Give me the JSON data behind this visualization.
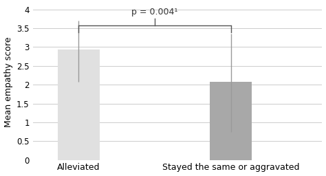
{
  "categories": [
    "Alleviated",
    "Stayed the same or aggravated"
  ],
  "values": [
    2.93,
    2.07
  ],
  "error_upper": [
    0.77,
    1.28
  ],
  "error_lower": [
    0.85,
    1.32
  ],
  "bar_colors": [
    "#e0e0e0",
    "#a8a8a8"
  ],
  "bar_width": 0.55,
  "bar_positions": [
    1,
    3
  ],
  "ylabel": "Mean empathy score",
  "ylim": [
    0,
    4.15
  ],
  "yticks": [
    0,
    0.5,
    1,
    1.5,
    2,
    2.5,
    3,
    3.5,
    4
  ],
  "ytick_labels": [
    "0",
    "0.5",
    "1",
    "1.5",
    "2",
    "2.5",
    "3",
    "3.5",
    "4"
  ],
  "sig_text": "p = 0.004¹",
  "sig_y": 3.82,
  "bracket_y": 3.58,
  "bracket_drop": 0.18,
  "center_tick_top": 3.75,
  "background_color": "#ffffff",
  "grid_color": "#cccccc",
  "xlim": [
    0.4,
    4.2
  ]
}
